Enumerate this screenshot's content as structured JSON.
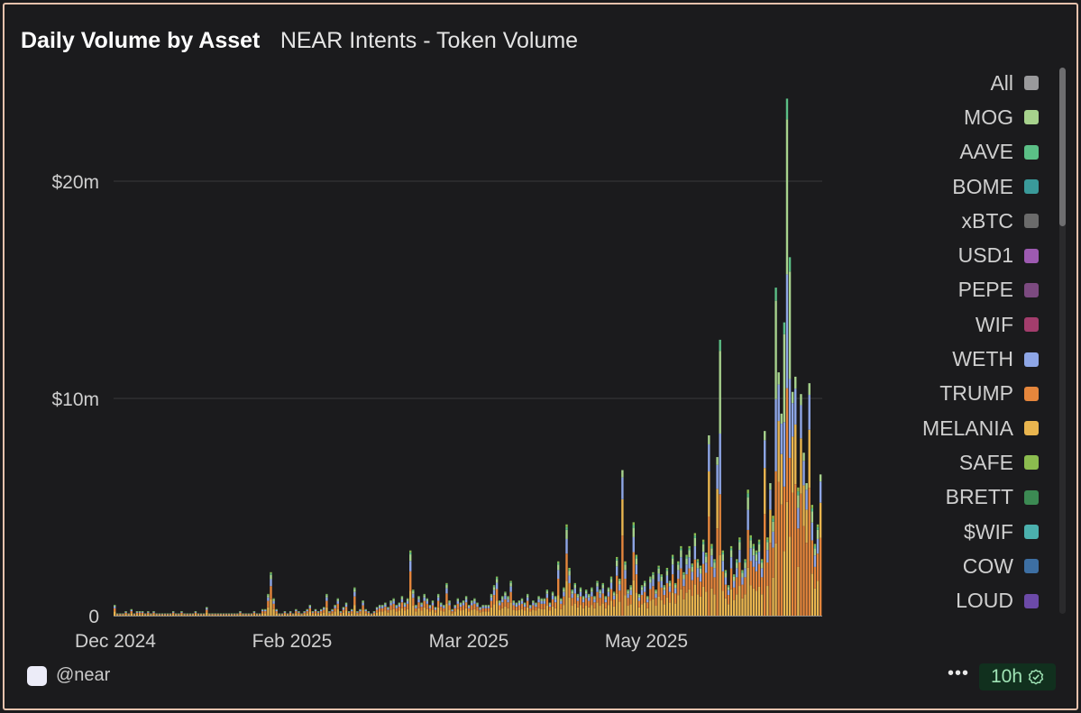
{
  "header": {
    "title": "Daily Volume by Asset",
    "subtitle": "NEAR Intents - Token Volume"
  },
  "footer": {
    "handle": "@near",
    "more_label": "•••",
    "age": "10h",
    "check_icon": "verified-check-icon",
    "logo_icon": "near-logo-icon"
  },
  "legend": [
    {
      "label": "All",
      "color": "#9a9a9c"
    },
    {
      "label": "MOG",
      "color": "#a7d28d"
    },
    {
      "label": "AAVE",
      "color": "#5bbf86"
    },
    {
      "label": "BOME",
      "color": "#3a9a9a"
    },
    {
      "label": "xBTC",
      "color": "#6b6b6b"
    },
    {
      "label": "USD1",
      "color": "#9d5ab1"
    },
    {
      "label": "PEPE",
      "color": "#7c4a80"
    },
    {
      "label": "WIF",
      "color": "#a33d6c"
    },
    {
      "label": "WETH",
      "color": "#8ea6e6"
    },
    {
      "label": "TRUMP",
      "color": "#e5863c"
    },
    {
      "label": "MELANIA",
      "color": "#e9b54f"
    },
    {
      "label": "SAFE",
      "color": "#8bbc4f"
    },
    {
      "label": "BRETT",
      "color": "#3c8a53"
    },
    {
      "label": "$WIF",
      "color": "#4bb0ad"
    },
    {
      "label": "COW",
      "color": "#3d6fa3"
    },
    {
      "label": "LOUD",
      "color": "#6c4aa8"
    }
  ],
  "chart_data": {
    "type": "bar",
    "stacked": true,
    "title": "Daily Volume by Asset",
    "subtitle": "NEAR Intents - Token Volume",
    "xlabel": "",
    "ylabel": "",
    "x_tick_labels": [
      "Dec 2024",
      "Feb 2025",
      "Mar 2025",
      "May 2025"
    ],
    "y_tick_labels": [
      "0",
      "$10m",
      "$20m"
    ],
    "y_tick_values": [
      0,
      10,
      20
    ],
    "ylim": [
      0,
      24
    ],
    "y_unit": "$m",
    "grid": true,
    "legend_position": "right",
    "series_colors": {
      "MOG": "#a7d28d",
      "AAVE": "#5bbf86",
      "WETH": "#8ea6e6",
      "TRUMP": "#e5863c",
      "MELANIA": "#e9b54f",
      "SAFE": "#8bbc4f"
    },
    "daily_totals_approx": [
      0.5,
      0.1,
      0.1,
      0.1,
      0.2,
      0.1,
      0.3,
      0.1,
      0.2,
      0.2,
      0.2,
      0.1,
      0.2,
      0.1,
      0.2,
      0.1,
      0.1,
      0.1,
      0.1,
      0.1,
      0.1,
      0.2,
      0.1,
      0.1,
      0.2,
      0.1,
      0.1,
      0.1,
      0.1,
      0.2,
      0.1,
      0.1,
      0.1,
      0.4,
      0.1,
      0.1,
      0.1,
      0.1,
      0.1,
      0.1,
      0.1,
      0.1,
      0.1,
      0.1,
      0.1,
      0.2,
      0.1,
      0.1,
      0.1,
      0.1,
      0.2,
      0.1,
      0.1,
      0.3,
      0.3,
      1.0,
      2.0,
      0.8,
      0.3,
      0.1,
      0.1,
      0.2,
      0.1,
      0.2,
      0.1,
      0.3,
      0.2,
      0.1,
      0.2,
      0.3,
      0.5,
      0.2,
      0.3,
      0.2,
      0.3,
      0.4,
      1.0,
      0.2,
      0.3,
      0.5,
      0.8,
      0.2,
      0.4,
      0.6,
      0.2,
      0.3,
      1.3,
      0.2,
      0.3,
      0.7,
      0.3,
      0.2,
      0.1,
      0.2,
      0.4,
      0.5,
      0.5,
      0.6,
      0.4,
      0.7,
      0.8,
      0.5,
      0.6,
      0.9,
      0.6,
      0.8,
      3.0,
      1.2,
      0.5,
      0.9,
      0.6,
      1.0,
      0.8,
      0.5,
      0.7,
      0.4,
      1.0,
      0.6,
      0.5,
      1.5,
      0.7,
      0.3,
      0.5,
      0.8,
      0.6,
      0.7,
      0.9,
      0.5,
      0.7,
      0.8,
      0.6,
      0.4,
      0.5,
      0.5,
      0.5,
      1.0,
      1.4,
      1.8,
      0.7,
      0.9,
      1.1,
      0.9,
      1.6,
      0.7,
      0.6,
      0.7,
      0.8,
      0.6,
      1.0,
      0.5,
      0.7,
      0.6,
      0.9,
      0.8,
      0.8,
      1.2,
      0.6,
      1.1,
      0.9,
      2.5,
      0.8,
      1.3,
      4.2,
      2.2,
      1.2,
      1.5,
      1.0,
      1.3,
      0.9,
      1.2,
      1.0,
      1.3,
      0.9,
      1.6,
      1.2,
      1.5,
      0.9,
      1.3,
      1.8,
      1.1,
      2.7,
      1.7,
      6.7,
      2.5,
      1.2,
      1.4,
      4.3,
      2.8,
      1.0,
      1.4,
      1.6,
      0.9,
      1.8,
      2.0,
      1.2,
      2.3,
      1.9,
      1.4,
      2.2,
      1.6,
      2.8,
      1.5,
      2.5,
      3.2,
      2.0,
      2.8,
      3.2,
      2.4,
      3.8,
      2.6,
      2.3,
      3.5,
      2.9,
      8.3,
      3.3,
      2.6,
      7.3,
      12.7,
      3.0,
      2.1,
      1.4,
      3.2,
      1.9,
      2.6,
      3.6,
      2.1,
      2.6,
      5.8,
      3.7,
      3.3,
      3.0,
      3.5,
      2.6,
      8.5,
      3.6,
      6.1,
      4.6,
      15.1,
      11.2,
      9.3,
      13.5,
      23.8,
      16.5,
      10.3,
      11.0,
      5.9,
      10.2,
      7.5,
      6.1,
      10.7,
      5.1,
      3.3,
      4.2,
      6.5
    ]
  }
}
